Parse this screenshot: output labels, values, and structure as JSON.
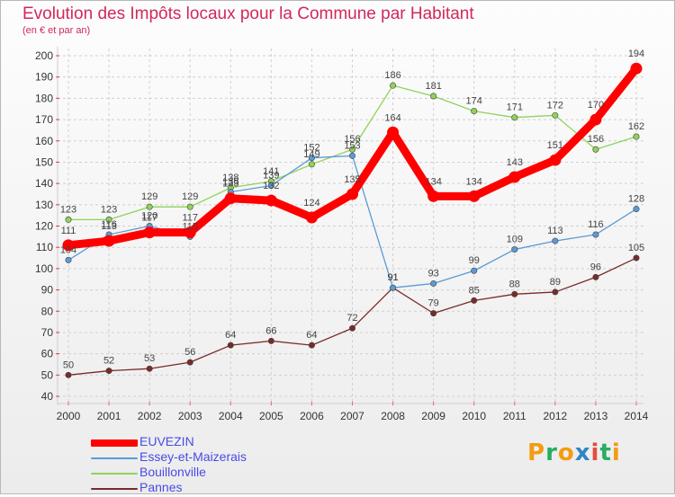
{
  "chart_data": {
    "type": "line",
    "title": "Evolution des Impôts locaux pour la Commune par Habitant",
    "subtitle": "(en € et par an)",
    "x": [
      "2000",
      "2001",
      "2002",
      "2003",
      "2004",
      "2005",
      "2006",
      "2007",
      "2008",
      "2009",
      "2010",
      "2011",
      "2012",
      "2013",
      "2014"
    ],
    "ylim": [
      40,
      200
    ],
    "yticks": [
      40,
      50,
      60,
      70,
      80,
      90,
      100,
      110,
      120,
      130,
      140,
      150,
      160,
      170,
      180,
      190,
      200
    ],
    "grid": true,
    "legend_position": "bottom-left",
    "series": [
      {
        "name": "EUVEZIN",
        "color": "#ff0000",
        "values": [
          111,
          113,
          117,
          117,
          133,
          132,
          124,
          135,
          164,
          134,
          134,
          143,
          151,
          170,
          194
        ]
      },
      {
        "name": "Essey-et-Maizerais",
        "color": "#5b9bd5",
        "values": [
          104,
          116,
          120,
          115,
          136,
          139,
          152,
          153,
          91,
          93,
          99,
          109,
          113,
          116,
          128
        ]
      },
      {
        "name": "Bouillonville",
        "color": "#8fd35a",
        "values": [
          123,
          123,
          129,
          129,
          138,
          141,
          149,
          156,
          186,
          181,
          174,
          171,
          172,
          156,
          162
        ]
      },
      {
        "name": "Pannes",
        "color": "#7a2a2a",
        "values": [
          50,
          52,
          53,
          56,
          64,
          66,
          64,
          72,
          91,
          79,
          85,
          88,
          89,
          96,
          105
        ]
      }
    ]
  },
  "logo": {
    "letters": [
      "P",
      "r",
      "o",
      "x",
      "i",
      "t",
      "i"
    ],
    "colors": [
      "#f39c12",
      "#27ae60",
      "#f39c12",
      "#2e86c1",
      "#e74c3c",
      "#27ae60",
      "#f39c12"
    ]
  }
}
